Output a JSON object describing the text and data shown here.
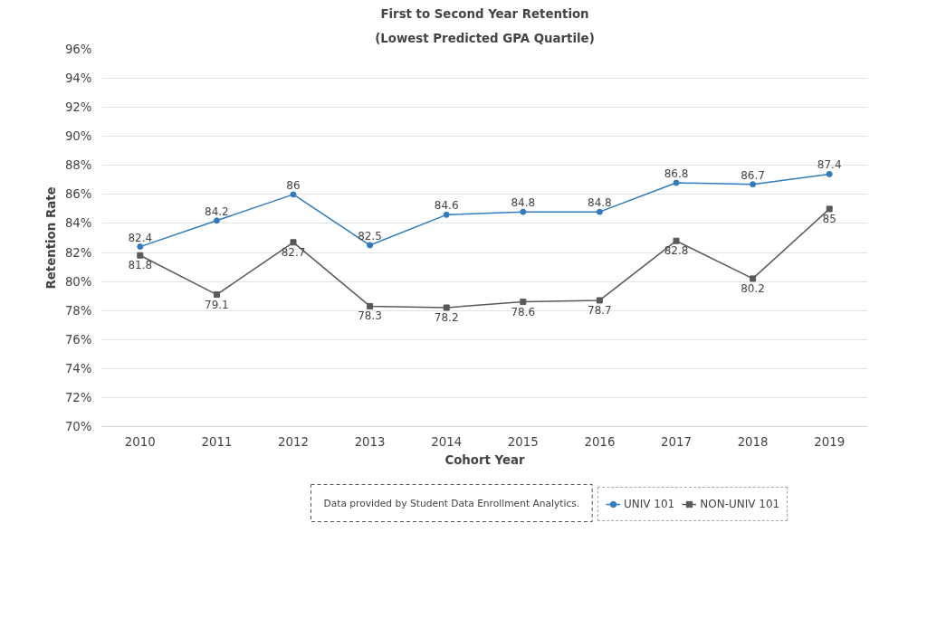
{
  "chart_data": {
    "type": "line",
    "title": "First to Second Year Retention",
    "subtitle": "(Lowest Predicted GPA Quartile)",
    "xlabel": "Cohort Year",
    "ylabel": "Retention Rate",
    "categories": [
      "2010",
      "2011",
      "2012",
      "2013",
      "2014",
      "2015",
      "2016",
      "2017",
      "2018",
      "2019"
    ],
    "series": [
      {
        "name": "UNIV 101",
        "color": "#2e7bbf",
        "marker": "circle",
        "values": [
          82.4,
          84.2,
          86,
          82.5,
          84.6,
          84.8,
          84.8,
          86.8,
          86.7,
          87.4
        ]
      },
      {
        "name": "NON-UNIV 101",
        "color": "#595959",
        "marker": "square",
        "values": [
          81.8,
          79.1,
          82.7,
          78.3,
          78.2,
          78.6,
          78.7,
          82.8,
          80.2,
          85
        ]
      }
    ],
    "ylim": [
      70,
      96
    ],
    "yticks": [
      {
        "value": 70,
        "label": "70%"
      },
      {
        "value": 72,
        "label": "72%"
      },
      {
        "value": 74,
        "label": "74%"
      },
      {
        "value": 76,
        "label": "76%"
      },
      {
        "value": 78,
        "label": "78%"
      },
      {
        "value": 80,
        "label": "80%"
      },
      {
        "value": 82,
        "label": "82%"
      },
      {
        "value": 84,
        "label": "84%"
      },
      {
        "value": 86,
        "label": "86%"
      },
      {
        "value": 88,
        "label": "88%"
      },
      {
        "value": 90,
        "label": "90%"
      },
      {
        "value": 92,
        "label": "92%"
      },
      {
        "value": 94,
        "label": "94%"
      },
      {
        "value": 96,
        "label": "96%"
      }
    ],
    "grid": "y",
    "legend": "bottom",
    "data_labels": true,
    "line_style": "solid",
    "annotations": [
      "Data provided by Student Data Enrollment Analytics."
    ]
  }
}
